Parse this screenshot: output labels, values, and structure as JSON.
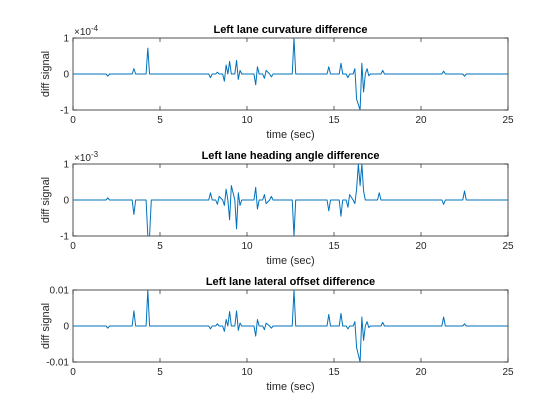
{
  "line_color": "#0072BD",
  "chart_data": [
    {
      "type": "line",
      "title": "Left lane curvature difference",
      "xlabel": "time (sec)",
      "ylabel": "diff signal",
      "xlim": [
        0,
        25
      ],
      "ylim": [
        -1,
        1
      ],
      "xticks": [
        0,
        5,
        10,
        15,
        20,
        25
      ],
      "xtick_labels": [
        "0",
        "5",
        "10",
        "15",
        "20",
        "25"
      ],
      "yticks": [
        -1,
        0,
        1
      ],
      "ytick_labels": [
        "-1",
        "0",
        "1"
      ],
      "exponent_base": "×10",
      "exponent_power": "-4",
      "series": [
        {
          "x": [
            0,
            1.9,
            2.0,
            2.1,
            3.4,
            3.5,
            3.6,
            4.2,
            4.3,
            4.4,
            7.8,
            7.9,
            8.0,
            8.2,
            8.3,
            8.4,
            8.6,
            8.7,
            8.8,
            8.9,
            9.0,
            9.1,
            9.3,
            9.4,
            9.5,
            9.6,
            9.7,
            10.4,
            10.5,
            10.6,
            10.7,
            10.9,
            11.0,
            11.1,
            11.3,
            11.4,
            11.5,
            12.6,
            12.7,
            12.8,
            14.6,
            14.7,
            14.8,
            15.3,
            15.4,
            15.5,
            15.7,
            15.8,
            15.9,
            16.1,
            16.2,
            16.3,
            16.5,
            16.6,
            16.7,
            16.8,
            16.9,
            17.0,
            17.1,
            17.7,
            17.8,
            17.9,
            21.2,
            21.3,
            21.4,
            22.4,
            22.5,
            22.6,
            25
          ],
          "y": [
            0,
            0,
            -0.06,
            0,
            0,
            0.15,
            0,
            0,
            0.72,
            0,
            0,
            -0.1,
            0,
            0,
            0.05,
            0,
            0,
            -0.2,
            0.25,
            0,
            0.35,
            0,
            0,
            0.38,
            -0.15,
            0.1,
            0,
            0,
            -0.3,
            0.2,
            0,
            0,
            -0.12,
            0.1,
            0,
            -0.08,
            0,
            0,
            1.0,
            0,
            0,
            0.2,
            0,
            0,
            0.3,
            0,
            0,
            -0.1,
            0,
            0,
            0.15,
            -0.7,
            -1.0,
            0.3,
            -0.5,
            0,
            0.15,
            -0.05,
            0,
            0,
            0.1,
            0,
            0,
            0.08,
            0,
            0,
            -0.06,
            0,
            0
          ]
        }
      ]
    },
    {
      "type": "line",
      "title": "Left lane heading angle difference",
      "xlabel": "time (sec)",
      "ylabel": "diff signal",
      "xlim": [
        0,
        25
      ],
      "ylim": [
        -1,
        1
      ],
      "xticks": [
        0,
        5,
        10,
        15,
        20,
        25
      ],
      "xtick_labels": [
        "0",
        "5",
        "10",
        "15",
        "20",
        "25"
      ],
      "yticks": [
        -1,
        0,
        1
      ],
      "ytick_labels": [
        "-1",
        "0",
        "1"
      ],
      "exponent_base": "×10",
      "exponent_power": "-3",
      "series": [
        {
          "x": [
            0,
            1.9,
            2.0,
            2.1,
            3.4,
            3.5,
            3.6,
            4.2,
            4.3,
            4.4,
            4.5,
            7.8,
            7.9,
            8.0,
            8.2,
            8.3,
            8.4,
            8.6,
            8.7,
            8.8,
            8.9,
            9.0,
            9.1,
            9.3,
            9.4,
            9.5,
            9.6,
            9.7,
            10.4,
            10.5,
            10.6,
            10.7,
            10.9,
            11.0,
            11.1,
            11.3,
            11.4,
            11.5,
            12.6,
            12.7,
            12.8,
            14.6,
            14.7,
            14.8,
            15.3,
            15.4,
            15.5,
            15.7,
            15.8,
            15.9,
            16.1,
            16.2,
            16.3,
            16.4,
            16.5,
            16.6,
            16.7,
            16.8,
            17.5,
            17.6,
            17.7,
            21.2,
            21.3,
            21.4,
            22.4,
            22.5,
            22.6,
            25
          ],
          "y": [
            0,
            0,
            0.06,
            0,
            0,
            -0.4,
            0,
            0,
            -1.0,
            -1.0,
            0,
            0,
            0.2,
            0,
            0,
            -0.12,
            0.1,
            0,
            -0.15,
            0.3,
            0,
            -0.55,
            0.4,
            0,
            -0.8,
            0.2,
            -0.15,
            0,
            0,
            0.35,
            -0.25,
            0,
            0,
            0.15,
            -0.1,
            0,
            0.1,
            0,
            0,
            -1.0,
            0,
            0,
            -0.3,
            0,
            0,
            -0.45,
            0,
            0,
            -0.2,
            0.15,
            0,
            -0.1,
            0.3,
            1.0,
            0.4,
            1.0,
            0.25,
            0,
            0,
            0.2,
            0,
            0,
            -0.12,
            0,
            0,
            0.25,
            0,
            0
          ]
        }
      ]
    },
    {
      "type": "line",
      "title": "Left lane lateral offset difference",
      "xlabel": "time (sec)",
      "ylabel": "diff signal",
      "xlim": [
        0,
        25
      ],
      "ylim": [
        -0.01,
        0.01
      ],
      "xticks": [
        0,
        5,
        10,
        15,
        20,
        25
      ],
      "xtick_labels": [
        "0",
        "5",
        "10",
        "15",
        "20",
        "25"
      ],
      "yticks": [
        -0.01,
        0,
        0.01
      ],
      "ytick_labels": [
        "-0.01",
        "0",
        "0.01"
      ],
      "exponent_base": "",
      "exponent_power": "",
      "series": [
        {
          "x": [
            0,
            1.9,
            2.0,
            2.1,
            3.4,
            3.5,
            3.6,
            4.2,
            4.3,
            4.4,
            7.8,
            7.9,
            8.0,
            8.2,
            8.3,
            8.4,
            8.6,
            8.7,
            8.8,
            8.9,
            9.0,
            9.1,
            9.3,
            9.4,
            9.5,
            9.6,
            9.7,
            10.4,
            10.5,
            10.6,
            10.7,
            10.9,
            11.0,
            11.1,
            11.3,
            11.4,
            11.5,
            12.6,
            12.7,
            12.8,
            14.6,
            14.7,
            14.8,
            15.3,
            15.4,
            15.5,
            15.7,
            15.8,
            15.9,
            16.1,
            16.2,
            16.3,
            16.5,
            16.6,
            16.7,
            16.8,
            16.9,
            17.0,
            17.1,
            17.7,
            17.8,
            17.9,
            21.2,
            21.3,
            21.4,
            22.4,
            22.5,
            22.6,
            25
          ],
          "y": [
            0,
            0,
            -0.0006,
            0,
            0,
            0.0042,
            0,
            0,
            0.01,
            0,
            0,
            -0.0008,
            0,
            0,
            0.0006,
            0,
            0,
            -0.0015,
            0.0018,
            0,
            0.004,
            0,
            0,
            0.0042,
            -0.0012,
            0.0008,
            0,
            0,
            -0.0028,
            0.0018,
            0,
            0,
            -0.001,
            0.0008,
            0,
            -0.0006,
            0,
            0,
            0.01,
            0,
            0,
            0.0032,
            0,
            0,
            0.0035,
            0,
            0,
            -0.0008,
            0,
            0,
            0.0012,
            -0.006,
            -0.01,
            0.0025,
            -0.004,
            0,
            0.0012,
            -0.0004,
            0,
            0,
            0.001,
            0,
            0,
            0.0025,
            0,
            0,
            0.0006,
            0,
            0
          ]
        }
      ]
    }
  ]
}
